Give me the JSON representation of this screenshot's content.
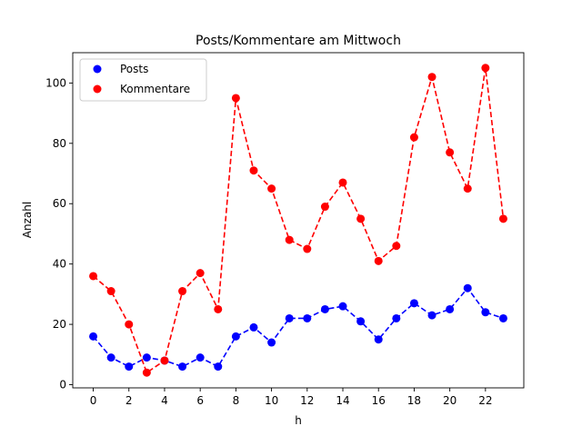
{
  "chart_data": {
    "type": "line",
    "title": "Posts/Kommentare am Mittwoch",
    "xlabel": "h",
    "ylabel": "Anzahl",
    "xlim": [
      -1.15,
      24.15
    ],
    "ylim": [
      -1.05,
      110.05
    ],
    "xticks": [
      0,
      2,
      4,
      6,
      8,
      10,
      12,
      14,
      16,
      18,
      20,
      22
    ],
    "yticks": [
      0,
      20,
      40,
      60,
      80,
      100
    ],
    "grid": false,
    "legend_position": "top-left",
    "x": [
      0,
      1,
      2,
      3,
      4,
      5,
      6,
      7,
      8,
      9,
      10,
      11,
      12,
      13,
      14,
      15,
      16,
      17,
      18,
      19,
      20,
      21,
      22,
      23
    ],
    "series": [
      {
        "name": "Posts",
        "color": "#0000ff",
        "line_style": "dashed",
        "marker": "circle",
        "values": [
          16,
          9,
          6,
          9,
          8,
          6,
          9,
          6,
          16,
          19,
          14,
          22,
          22,
          25,
          26,
          21,
          15,
          22,
          27,
          23,
          25,
          32,
          24,
          22
        ]
      },
      {
        "name": "Kommentare",
        "color": "#ff0000",
        "line_style": "dashed",
        "marker": "circle",
        "values": [
          36,
          31,
          20,
          4,
          8,
          31,
          37,
          25,
          95,
          71,
          65,
          48,
          45,
          59,
          67,
          55,
          41,
          46,
          82,
          102,
          77,
          65,
          105,
          55
        ]
      }
    ]
  }
}
